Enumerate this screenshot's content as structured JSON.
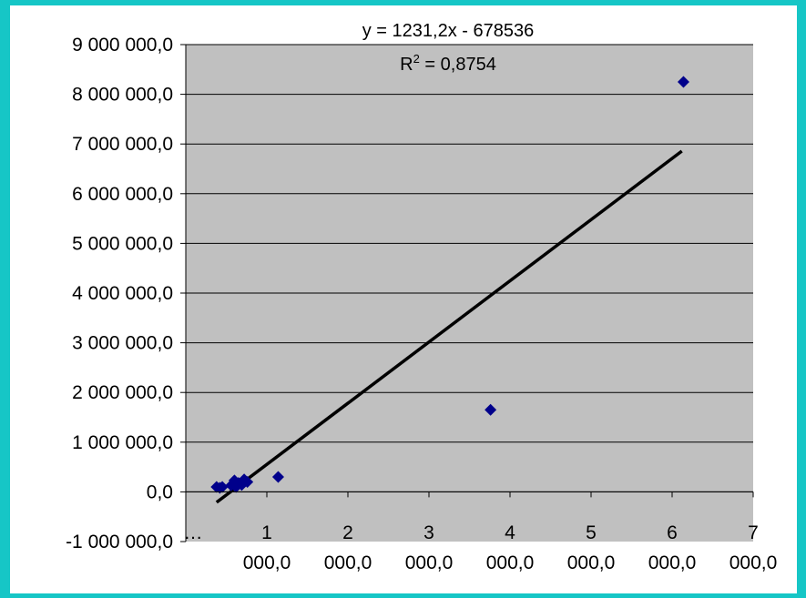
{
  "chart_data": {
    "type": "scatter",
    "title": "",
    "xlabel": "",
    "ylabel": "",
    "xlim": [
      0,
      7000
    ],
    "ylim": [
      -1000000,
      9000000
    ],
    "grid": true,
    "plot_background": "#c0c0c0",
    "marker_color": "#00008b",
    "trendline_color": "#000000",
    "yticks": [
      {
        "value": -1000000,
        "label": "-1 000 000,0"
      },
      {
        "value": 0,
        "label": "0,0"
      },
      {
        "value": 1000000,
        "label": "1 000 000,0"
      },
      {
        "value": 2000000,
        "label": "2 000 000,0"
      },
      {
        "value": 3000000,
        "label": "3 000 000,0"
      },
      {
        "value": 4000000,
        "label": "4 000 000,0"
      },
      {
        "value": 5000000,
        "label": "5 000 000,0"
      },
      {
        "value": 6000000,
        "label": "6 000 000,0"
      },
      {
        "value": 7000000,
        "label": "7 000 000,0"
      },
      {
        "value": 8000000,
        "label": "8 000 000,0"
      },
      {
        "value": 9000000,
        "label": "9 000 000,0"
      }
    ],
    "xticks": [
      {
        "value": 0,
        "line1": "…",
        "line2": ""
      },
      {
        "value": 1000,
        "line1": "1",
        "line2": "000,0"
      },
      {
        "value": 2000,
        "line1": "2",
        "line2": "000,0"
      },
      {
        "value": 3000,
        "line1": "3",
        "line2": "000,0"
      },
      {
        "value": 4000,
        "line1": "4",
        "line2": "000,0"
      },
      {
        "value": 5000,
        "line1": "5",
        "line2": "000,0"
      },
      {
        "value": 6000,
        "line1": "6",
        "line2": "000,0"
      },
      {
        "value": 7000,
        "line1": "7",
        "line2": "000,0"
      }
    ],
    "points": [
      {
        "x": 380,
        "y": 100000
      },
      {
        "x": 420,
        "y": 80000
      },
      {
        "x": 450,
        "y": 100000
      },
      {
        "x": 560,
        "y": 130000
      },
      {
        "x": 600,
        "y": 230000
      },
      {
        "x": 620,
        "y": 100000
      },
      {
        "x": 650,
        "y": 180000
      },
      {
        "x": 690,
        "y": 140000
      },
      {
        "x": 720,
        "y": 250000
      },
      {
        "x": 760,
        "y": 200000
      },
      {
        "x": 1140,
        "y": 300000
      },
      {
        "x": 3760,
        "y": 1650000
      },
      {
        "x": 6140,
        "y": 8250000
      }
    ],
    "trendline": {
      "x_start": 380,
      "x_end": 6120,
      "slope": 1231.2,
      "intercept": -678536,
      "equation": "y = 1231,2x - 678536",
      "r2_prefix": "R",
      "r2_sup": "2",
      "r2_value": " = 0,8754"
    }
  }
}
